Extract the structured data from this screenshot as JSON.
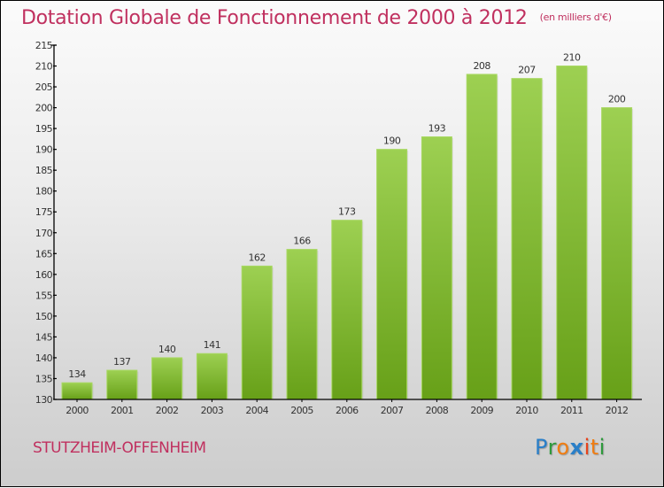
{
  "title": "Dotation Globale de Fonctionnement de 2000 à 2012",
  "unit_note": "(en milliers d'€)",
  "commune": "STUTZHEIM-OFFENHEIM",
  "logo": {
    "letters": [
      {
        "ch": "P",
        "color": "#2a7fc8"
      },
      {
        "ch": "r",
        "color": "#2e9a3c"
      },
      {
        "ch": "o",
        "color": "#f07d12"
      },
      {
        "ch": "x",
        "color": "#2a7fc8"
      },
      {
        "ch": "i",
        "color": "#e8431b"
      },
      {
        "ch": "t",
        "color": "#f07d12"
      },
      {
        "ch": "i",
        "color": "#2e9a3c"
      }
    ]
  },
  "colors": {
    "title": "#c0305f",
    "bar_top": "#9dd052",
    "bar_bottom": "#67a018",
    "axis": "#000000",
    "label_text": "#333333"
  },
  "chart_data": {
    "type": "bar",
    "title": "Dotation Globale de Fonctionnement de 2000 à 2012",
    "subtitle": "(en milliers d'€)",
    "xlabel": "",
    "ylabel": "",
    "categories": [
      "2000",
      "2001",
      "2002",
      "2003",
      "2004",
      "2005",
      "2006",
      "2007",
      "2008",
      "2009",
      "2010",
      "2011",
      "2012"
    ],
    "values": [
      134,
      137,
      140,
      141,
      162,
      166,
      173,
      190,
      193,
      208,
      207,
      210,
      200
    ],
    "ylim": [
      130,
      215
    ],
    "yticks": [
      130,
      135,
      140,
      145,
      150,
      155,
      160,
      165,
      170,
      175,
      180,
      185,
      190,
      195,
      200,
      205,
      210,
      215
    ],
    "grid": false,
    "legend": "none",
    "data_labels": true
  }
}
